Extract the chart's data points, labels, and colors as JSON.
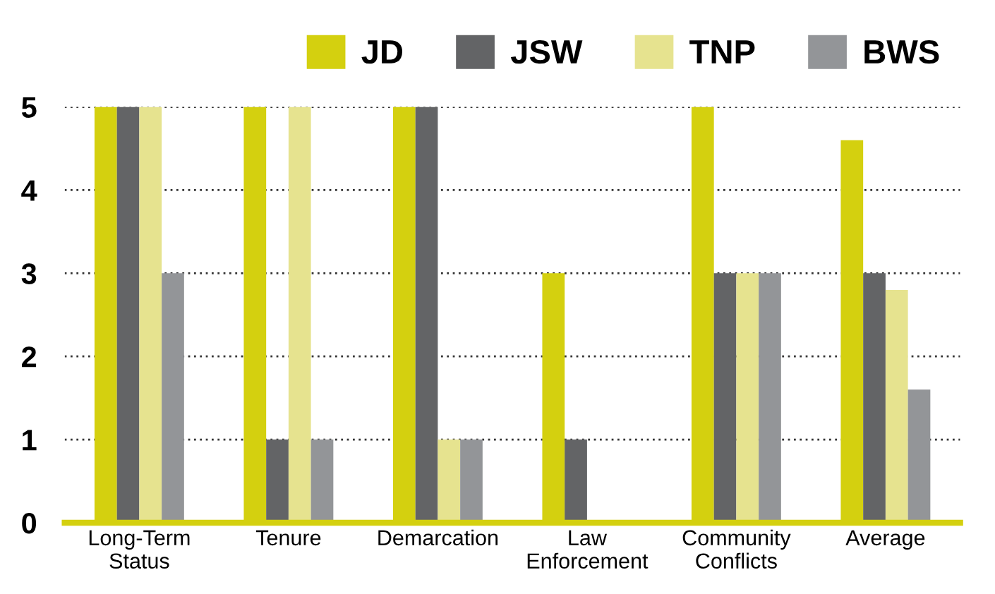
{
  "chart_data": {
    "type": "bar",
    "categories": [
      "Long-Term\nStatus",
      "Tenure",
      "Demarcation",
      "Law\nEnforcement",
      "Community\nConflicts",
      "Average"
    ],
    "series": [
      {
        "name": "JD",
        "color": "#d4d00f",
        "values": [
          5,
          5,
          5,
          3,
          5,
          4.6
        ]
      },
      {
        "name": "JSW",
        "color": "#636466",
        "values": [
          5,
          1,
          5,
          1,
          3,
          3
        ]
      },
      {
        "name": "TNP",
        "color": "#e6e38f",
        "values": [
          5,
          5,
          1,
          0,
          3,
          2.8
        ]
      },
      {
        "name": "BWS",
        "color": "#939598",
        "values": [
          3,
          1,
          1,
          0,
          3,
          1.6
        ]
      }
    ],
    "ylim": [
      0,
      5
    ],
    "yticks": [
      0,
      1,
      2,
      3,
      4,
      5
    ],
    "grid": "y",
    "legend": "top right"
  }
}
